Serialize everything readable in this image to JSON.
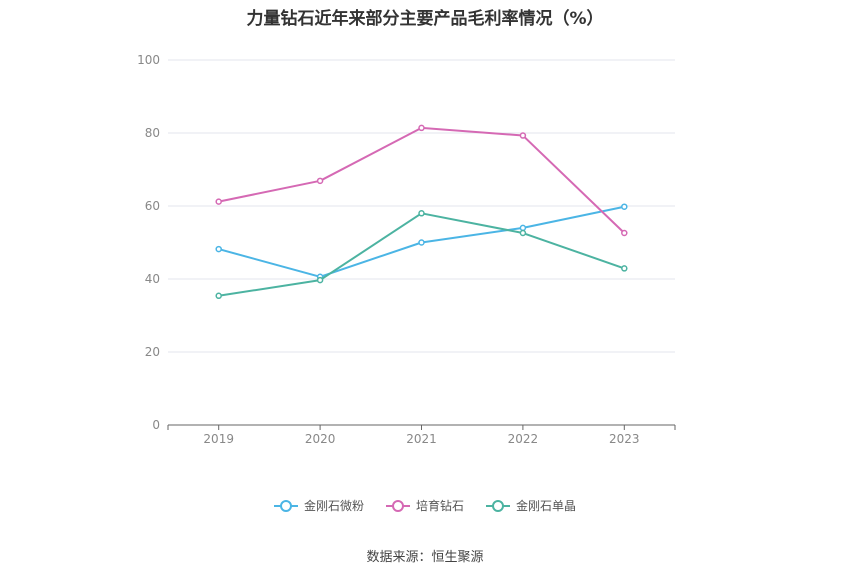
{
  "title": "力量钻石近年来部分主要产品毛利率情况（%）",
  "source": "数据来源：恒生聚源",
  "chart_data": {
    "type": "line",
    "x": [
      "2019",
      "2020",
      "2021",
      "2022",
      "2023"
    ],
    "ylim": [
      0,
      100
    ],
    "yticks": [
      "0",
      "20",
      "40",
      "60",
      "80",
      "100"
    ],
    "grid": true,
    "legend_position": "bottom",
    "series": [
      {
        "name": "金刚石微粉",
        "color": "#4bb5e5",
        "values": [
          48.2,
          40.6,
          50.0,
          54.0,
          59.8
        ]
      },
      {
        "name": "培育钻石",
        "color": "#d569b4",
        "values": [
          61.2,
          66.9,
          81.4,
          79.3,
          52.6
        ]
      },
      {
        "name": "金刚石单晶",
        "color": "#4cb3a1",
        "values": [
          35.4,
          39.7,
          58.0,
          52.6,
          42.9
        ]
      }
    ]
  }
}
